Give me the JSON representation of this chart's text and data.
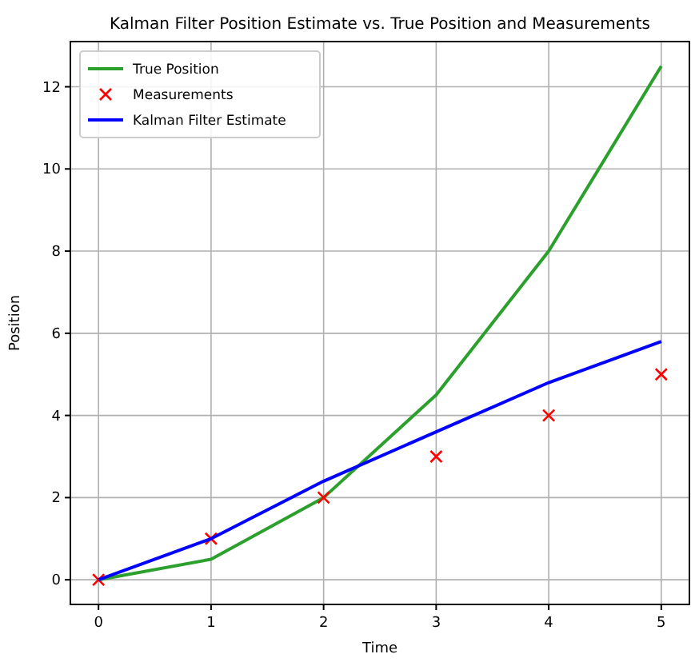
{
  "chart_data": {
    "type": "line",
    "title": "Kalman Filter Position Estimate vs. True Position and Measurements",
    "xlabel": "Time",
    "ylabel": "Position",
    "x": [
      0,
      1,
      2,
      3,
      4,
      5
    ],
    "series": [
      {
        "name": "True Position",
        "color": "#2ca02c",
        "values": [
          0,
          0.5,
          2,
          4.5,
          8,
          12.5
        ]
      },
      {
        "name": "Measurements",
        "color": "#ff0000",
        "type": "scatter",
        "marker": "cross",
        "values": [
          0,
          1,
          2,
          3,
          4,
          5
        ]
      },
      {
        "name": "Kalman Filter Estimate",
        "color": "#0000ff",
        "values": [
          0,
          1,
          2.4,
          3.6,
          4.8,
          5.8
        ]
      }
    ],
    "xlim": [
      -0.25,
      5.25
    ],
    "xticks": [
      0,
      1,
      2,
      3,
      4,
      5
    ],
    "ylim": [
      -0.6,
      13.1
    ],
    "yticks": [
      0,
      2,
      4,
      6,
      8,
      10,
      12
    ],
    "grid": true,
    "legend": "top left"
  }
}
